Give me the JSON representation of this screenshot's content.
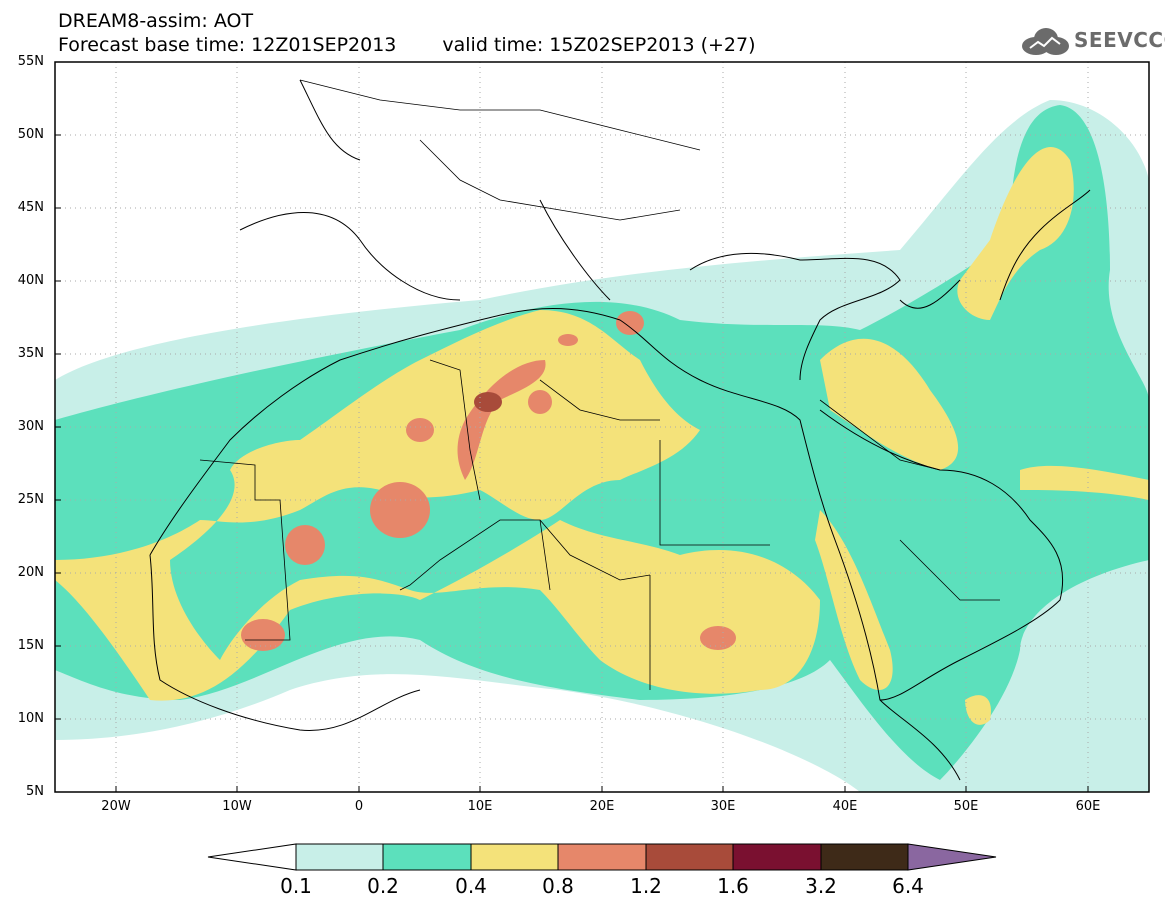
{
  "header": {
    "line1": "DREAM8-assim: AOT",
    "line2_base": "Forecast base time: 12Z01SEP2013",
    "line2_valid": "valid time: 15Z02SEP2013 (+27)",
    "logo_text": "SEEVCCC",
    "logo_icon": "cloud-icon"
  },
  "map": {
    "lon_range": [
      -25,
      65
    ],
    "lat_range": [
      5,
      55
    ],
    "lat_labels": [
      "55N",
      "50N",
      "45N",
      "40N",
      "35N",
      "30N",
      "25N",
      "20N",
      "15N",
      "10N",
      "5N"
    ],
    "lon_labels": [
      "20W",
      "10W",
      "0",
      "10E",
      "20E",
      "30E",
      "40E",
      "50E",
      "60E"
    ]
  },
  "colorbar": {
    "levels": [
      "0.1",
      "0.2",
      "0.4",
      "0.8",
      "1.2",
      "1.6",
      "3.2",
      "6.4"
    ],
    "colors": [
      "#c8efe8",
      "#5ce0bc",
      "#f4e27a",
      "#e6876a",
      "#a84b3a",
      "#7a1030",
      "#3e2a18",
      "#8a67a0"
    ],
    "under_color": "#ffffff"
  }
}
